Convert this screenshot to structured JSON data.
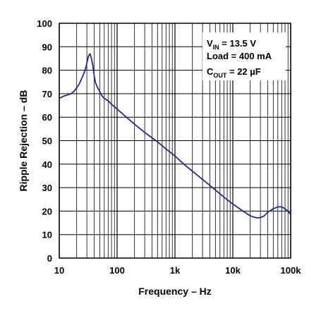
{
  "chart_data": {
    "type": "line",
    "title": "",
    "xlabel": "Frequency – Hz",
    "ylabel": "Ripple Rejection – dB",
    "x_scale": "log",
    "xlim": [
      10,
      100000
    ],
    "ylim": [
      0,
      100
    ],
    "x_ticks": [
      10,
      100,
      1000,
      10000,
      100000
    ],
    "x_tick_labels": [
      "10",
      "100",
      "1k",
      "10k",
      "100k"
    ],
    "y_ticks": [
      0,
      10,
      20,
      30,
      40,
      50,
      60,
      70,
      80,
      90,
      100
    ],
    "y_tick_labels": [
      "0",
      "10",
      "20",
      "30",
      "40",
      "50",
      "60",
      "70",
      "80",
      "90",
      "100"
    ],
    "grid": true,
    "annotations": {
      "vin_label": "V",
      "vin_sub": "IN",
      "vin_value": " = 13.5 V",
      "load": "Load = 400 mA",
      "cout_label": "C",
      "cout_sub": "OUT",
      "cout_value": " = 22 µF"
    },
    "series": [
      {
        "color": "#1f2a8a",
        "x": [
          10,
          12,
          14,
          16,
          18,
          20,
          22,
          25,
          28,
          30,
          32,
          34,
          35,
          36,
          38,
          40,
          42,
          45,
          50,
          55,
          60,
          70,
          80,
          100,
          130,
          200,
          300,
          500,
          700,
          1000,
          1500,
          2000,
          3000,
          5000,
          7000,
          10000,
          15000,
          20000,
          25000,
          30000,
          35000,
          40000,
          50000,
          60000,
          70000,
          80000,
          90000,
          100000
        ],
        "y": [
          68,
          69,
          69.5,
          70,
          71,
          72.5,
          74,
          77,
          80,
          83,
          86,
          87,
          86,
          85,
          82,
          78,
          75,
          73,
          71,
          69,
          68,
          67,
          65.5,
          63.5,
          61,
          57,
          53.5,
          49.5,
          46.5,
          43.5,
          39.5,
          37,
          33.5,
          29,
          26,
          23,
          20,
          18,
          17.2,
          17.2,
          18,
          19.5,
          21,
          21.8,
          21.8,
          21,
          20,
          18.5
        ]
      }
    ]
  }
}
